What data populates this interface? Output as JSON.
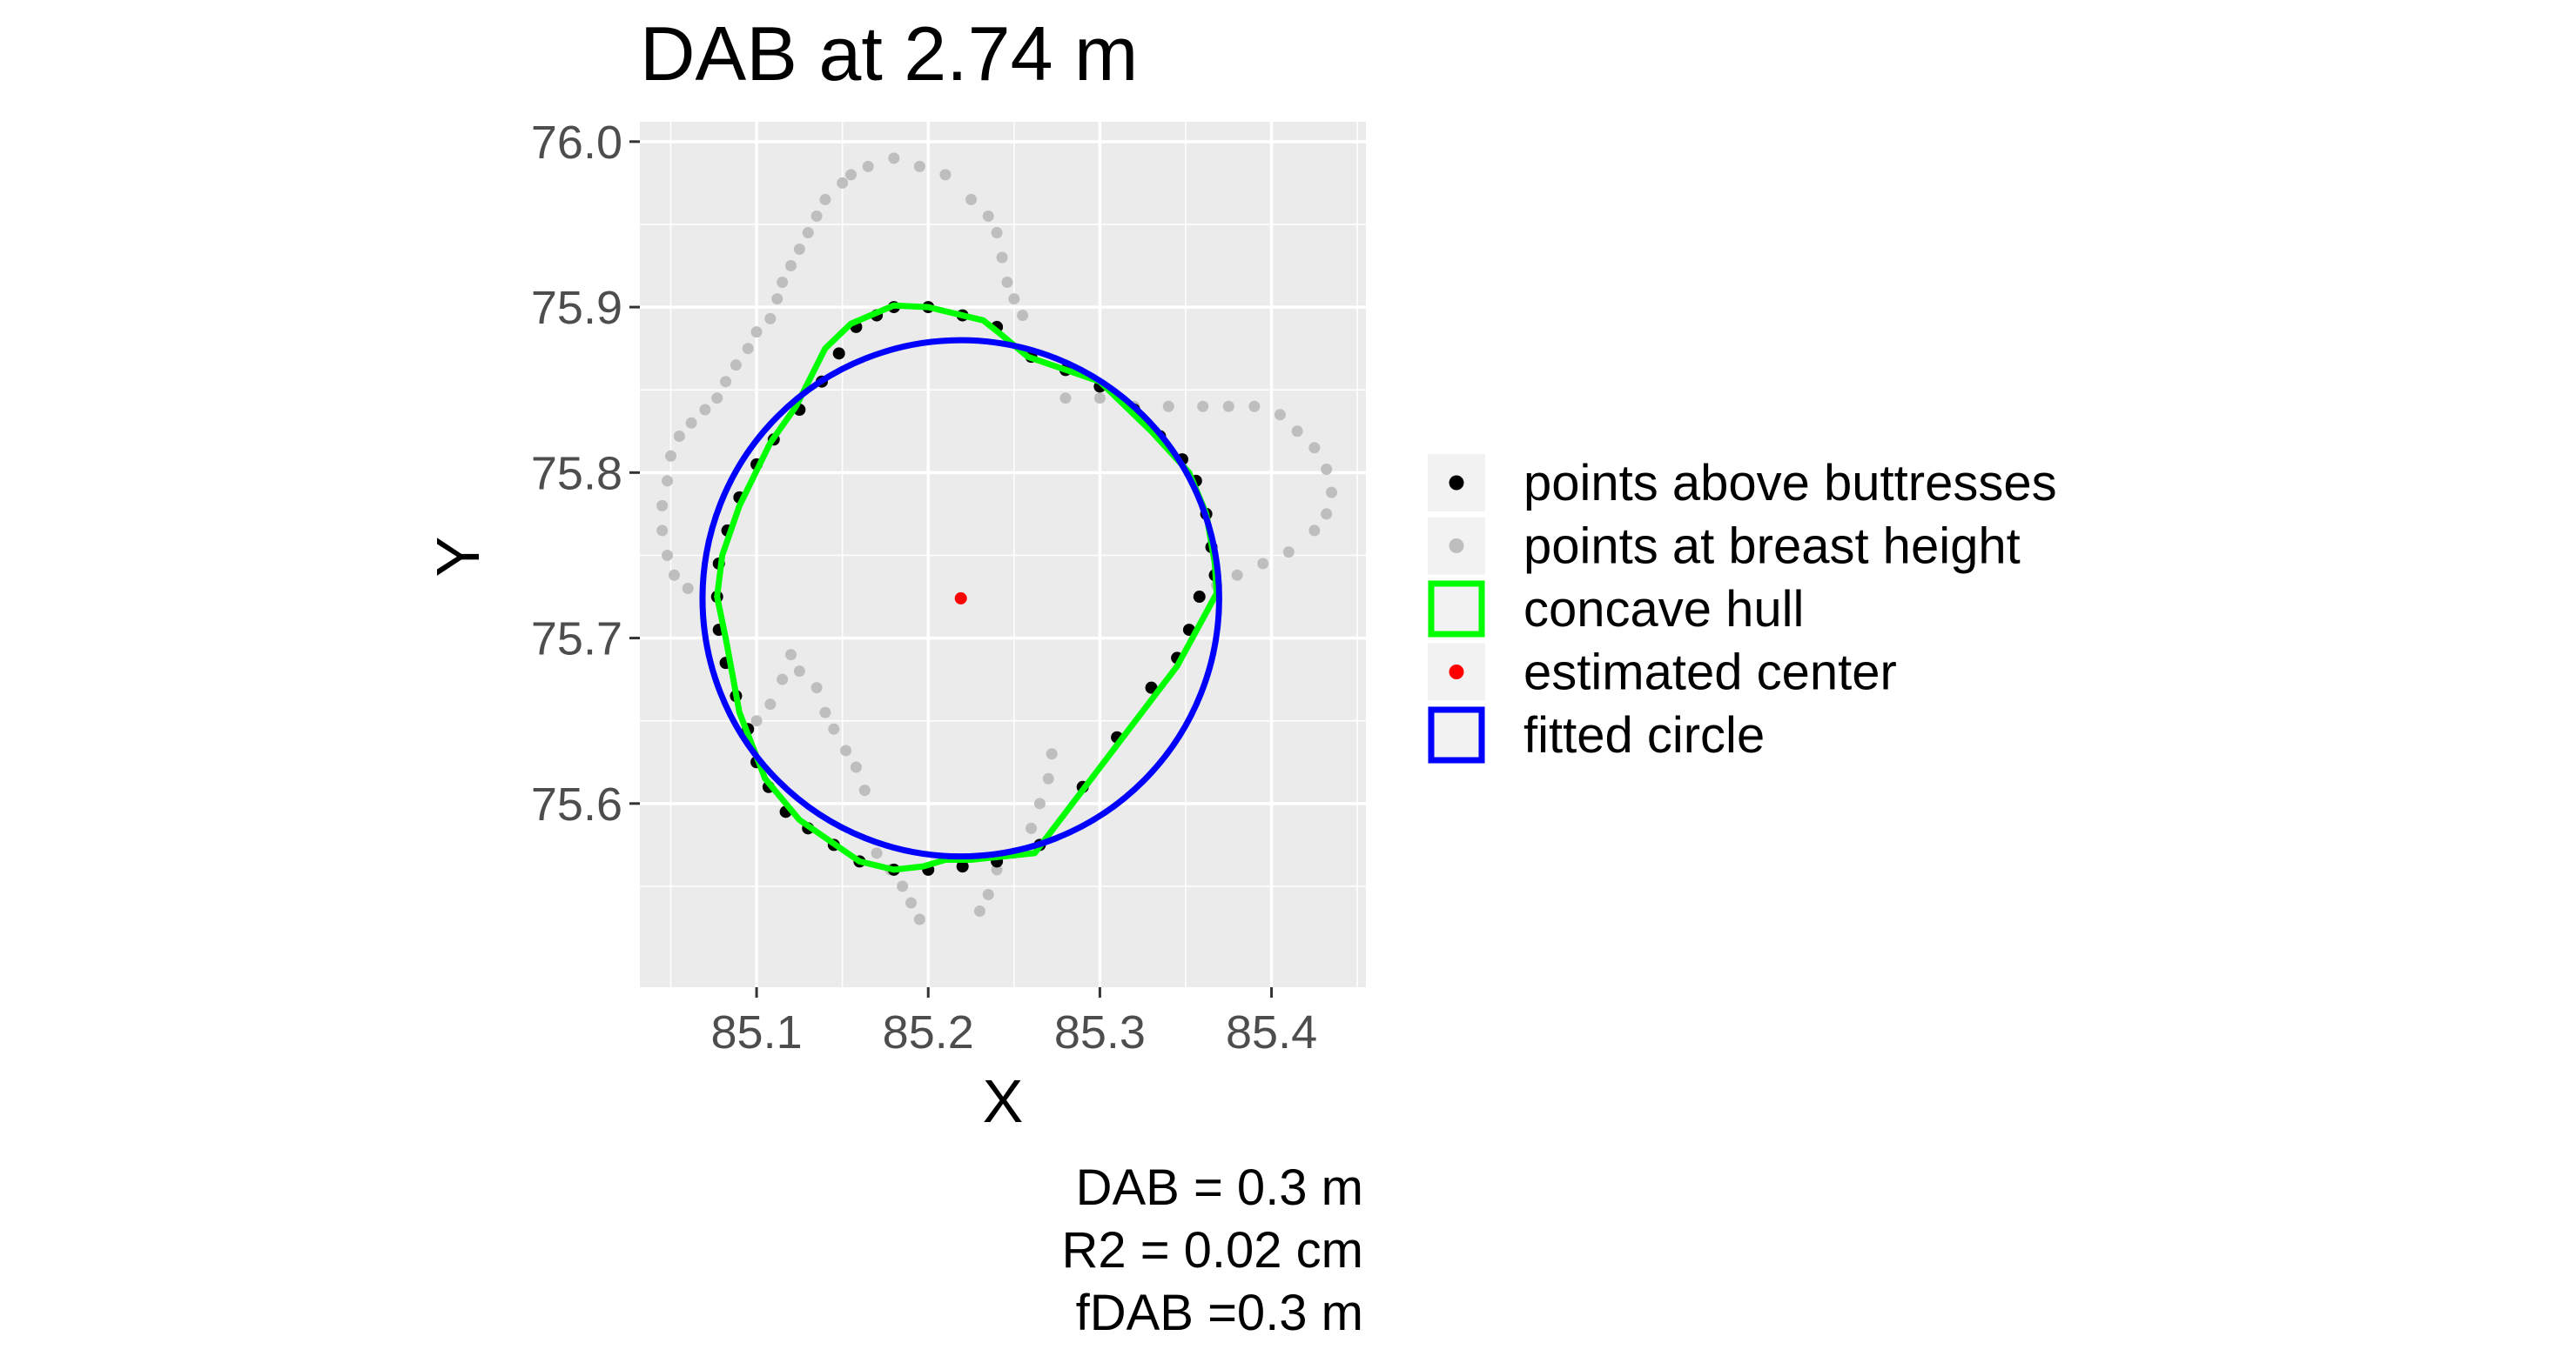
{
  "chart_data": {
    "type": "scatter",
    "title": "DAB at 2.74 m",
    "xlabel": "X",
    "ylabel": "Y",
    "xlim": [
      85.032,
      85.455
    ],
    "ylim": [
      75.489,
      76.012
    ],
    "x_ticks": [
      {
        "value": 85.1,
        "label": "85.1"
      },
      {
        "value": 85.2,
        "label": "85.2"
      },
      {
        "value": 85.3,
        "label": "85.3"
      },
      {
        "value": 85.4,
        "label": "85.4"
      }
    ],
    "y_ticks": [
      {
        "value": 75.6,
        "label": "75.6"
      },
      {
        "value": 75.7,
        "label": "75.7"
      },
      {
        "value": 75.8,
        "label": "75.8"
      },
      {
        "value": 75.9,
        "label": "75.9"
      },
      {
        "value": 76.0,
        "label": "76.0"
      }
    ],
    "grid": true,
    "legend_position": "right",
    "legend": [
      {
        "key": "black_points",
        "label": "points above buttresses",
        "color": "#000000",
        "style": "point"
      },
      {
        "key": "gray_points",
        "label": "points at breast height",
        "color": "#bebebe",
        "style": "point"
      },
      {
        "key": "hull",
        "label": "concave hull",
        "color": "#00ff00",
        "style": "box"
      },
      {
        "key": "center",
        "label": "estimated center",
        "color": "#ff0000",
        "style": "point"
      },
      {
        "key": "circle",
        "label": "fitted circle",
        "color": "#0000ff",
        "style": "box"
      }
    ],
    "series": [
      {
        "name": "points at breast height",
        "color": "#bebebe",
        "points": [
          [
            85.18,
            75.99
          ],
          [
            85.195,
            75.985
          ],
          [
            85.21,
            75.98
          ],
          [
            85.165,
            75.985
          ],
          [
            85.155,
            75.98
          ],
          [
            85.15,
            75.975
          ],
          [
            85.14,
            75.965
          ],
          [
            85.135,
            75.955
          ],
          [
            85.13,
            75.945
          ],
          [
            85.125,
            75.935
          ],
          [
            85.12,
            75.925
          ],
          [
            85.115,
            75.915
          ],
          [
            85.112,
            75.905
          ],
          [
            85.108,
            75.893
          ],
          [
            85.1,
            75.885
          ],
          [
            85.095,
            75.875
          ],
          [
            85.088,
            75.865
          ],
          [
            85.082,
            75.855
          ],
          [
            85.077,
            75.845
          ],
          [
            85.07,
            75.838
          ],
          [
            85.062,
            75.83
          ],
          [
            85.055,
            75.822
          ],
          [
            85.05,
            75.81
          ],
          [
            85.048,
            75.795
          ],
          [
            85.045,
            75.78
          ],
          [
            85.045,
            75.765
          ],
          [
            85.048,
            75.75
          ],
          [
            85.052,
            75.738
          ],
          [
            85.06,
            75.73
          ],
          [
            85.225,
            75.965
          ],
          [
            85.235,
            75.955
          ],
          [
            85.24,
            75.945
          ],
          [
            85.243,
            75.93
          ],
          [
            85.246,
            75.915
          ],
          [
            85.25,
            75.905
          ],
          [
            85.255,
            75.895
          ],
          [
            85.28,
            75.845
          ],
          [
            85.3,
            75.845
          ],
          [
            85.32,
            75.84
          ],
          [
            85.34,
            75.84
          ],
          [
            85.36,
            75.84
          ],
          [
            85.375,
            75.84
          ],
          [
            85.39,
            75.84
          ],
          [
            85.405,
            75.835
          ],
          [
            85.415,
            75.825
          ],
          [
            85.425,
            75.815
          ],
          [
            85.432,
            75.802
          ],
          [
            85.435,
            75.788
          ],
          [
            85.432,
            75.775
          ],
          [
            85.425,
            75.765
          ],
          [
            85.41,
            75.752
          ],
          [
            85.395,
            75.745
          ],
          [
            85.38,
            75.738
          ],
          [
            85.368,
            75.732
          ],
          [
            85.1,
            75.65
          ],
          [
            85.108,
            75.66
          ],
          [
            85.115,
            75.675
          ],
          [
            85.12,
            75.69
          ],
          [
            85.125,
            75.68
          ],
          [
            85.135,
            75.67
          ],
          [
            85.14,
            75.655
          ],
          [
            85.145,
            75.645
          ],
          [
            85.152,
            75.632
          ],
          [
            85.158,
            75.622
          ],
          [
            85.163,
            75.608
          ],
          [
            85.17,
            75.57
          ],
          [
            85.178,
            75.56
          ],
          [
            85.185,
            75.55
          ],
          [
            85.19,
            75.54
          ],
          [
            85.195,
            75.53
          ],
          [
            85.23,
            75.535
          ],
          [
            85.235,
            75.545
          ],
          [
            85.24,
            75.56
          ],
          [
            85.25,
            75.57
          ],
          [
            85.26,
            75.585
          ],
          [
            85.265,
            75.6
          ],
          [
            85.27,
            75.615
          ],
          [
            85.272,
            75.63
          ]
        ]
      },
      {
        "name": "points above buttresses",
        "color": "#000000",
        "points": [
          [
            85.18,
            75.9
          ],
          [
            85.2,
            75.9
          ],
          [
            85.22,
            75.895
          ],
          [
            85.24,
            75.888
          ],
          [
            85.26,
            75.87
          ],
          [
            85.28,
            75.862
          ],
          [
            85.3,
            75.852
          ],
          [
            85.32,
            75.838
          ],
          [
            85.335,
            75.822
          ],
          [
            85.348,
            75.808
          ],
          [
            85.356,
            75.795
          ],
          [
            85.362,
            75.775
          ],
          [
            85.365,
            75.755
          ],
          [
            85.367,
            75.738
          ],
          [
            85.358,
            75.725
          ],
          [
            85.352,
            75.705
          ],
          [
            85.345,
            75.688
          ],
          [
            85.33,
            75.67
          ],
          [
            85.31,
            75.64
          ],
          [
            85.29,
            75.61
          ],
          [
            85.265,
            75.575
          ],
          [
            85.24,
            75.565
          ],
          [
            85.22,
            75.562
          ],
          [
            85.2,
            75.56
          ],
          [
            85.18,
            75.56
          ],
          [
            85.16,
            75.565
          ],
          [
            85.145,
            75.575
          ],
          [
            85.13,
            75.585
          ],
          [
            85.117,
            75.595
          ],
          [
            85.107,
            75.61
          ],
          [
            85.1,
            75.625
          ],
          [
            85.095,
            75.645
          ],
          [
            85.088,
            75.665
          ],
          [
            85.082,
            75.685
          ],
          [
            85.078,
            75.705
          ],
          [
            85.077,
            75.725
          ],
          [
            85.078,
            75.745
          ],
          [
            85.083,
            75.765
          ],
          [
            85.09,
            75.785
          ],
          [
            85.1,
            75.805
          ],
          [
            85.11,
            75.82
          ],
          [
            85.125,
            75.838
          ],
          [
            85.138,
            75.855
          ],
          [
            85.148,
            75.872
          ],
          [
            85.158,
            75.888
          ],
          [
            85.17,
            75.895
          ]
        ]
      },
      {
        "name": "concave hull",
        "color": "#00ff00",
        "points": [
          [
            85.18,
            75.901
          ],
          [
            85.2,
            75.9
          ],
          [
            85.232,
            75.892
          ],
          [
            85.243,
            75.883
          ],
          [
            85.258,
            75.87
          ],
          [
            85.3,
            75.855
          ],
          [
            85.33,
            75.825
          ],
          [
            85.352,
            75.8
          ],
          [
            85.362,
            75.775
          ],
          [
            85.367,
            75.745
          ],
          [
            85.368,
            75.727
          ],
          [
            85.345,
            75.683
          ],
          [
            85.262,
            75.57
          ],
          [
            85.225,
            75.566
          ],
          [
            85.21,
            75.566
          ],
          [
            85.197,
            75.562
          ],
          [
            85.18,
            75.56
          ],
          [
            85.16,
            75.565
          ],
          [
            85.125,
            75.59
          ],
          [
            85.105,
            75.615
          ],
          [
            85.09,
            75.655
          ],
          [
            85.082,
            75.7
          ],
          [
            85.077,
            75.725
          ],
          [
            85.08,
            75.75
          ],
          [
            85.09,
            75.78
          ],
          [
            85.108,
            75.818
          ],
          [
            85.123,
            75.84
          ],
          [
            85.14,
            75.875
          ],
          [
            85.155,
            75.89
          ]
        ]
      },
      {
        "name": "estimated center",
        "color": "#ff0000",
        "points": [
          [
            85.219,
            75.724
          ]
        ]
      },
      {
        "name": "fitted circle",
        "color": "#0000ff",
        "circle": {
          "cx": 85.219,
          "cy": 75.724,
          "r": 0.1505
        }
      }
    ],
    "annotations": {
      "dab": "DAB = 0.3 m",
      "r2": "R2 = 0.02 cm",
      "fdab": "fDAB =0.3 m"
    }
  }
}
